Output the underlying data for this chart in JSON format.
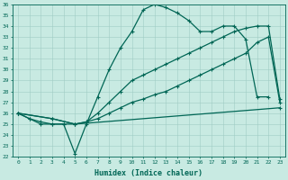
{
  "xlabel": "Humidex (Indice chaleur)",
  "xlim": [
    -0.5,
    23.5
  ],
  "ylim": [
    22,
    36
  ],
  "yticks": [
    22,
    23,
    24,
    25,
    26,
    27,
    28,
    29,
    30,
    31,
    32,
    33,
    34,
    35,
    36
  ],
  "xticks": [
    0,
    1,
    2,
    3,
    4,
    5,
    6,
    7,
    8,
    9,
    10,
    11,
    12,
    13,
    14,
    15,
    16,
    17,
    18,
    19,
    20,
    21,
    22,
    23
  ],
  "bg_color": "#c8eae2",
  "line_color": "#006655",
  "grid_color": "#a0ccc4",
  "line1_x": [
    0,
    1,
    2,
    3,
    4,
    5,
    6,
    7,
    8,
    9,
    10,
    11,
    12,
    13,
    14,
    15,
    16,
    17,
    18,
    19,
    20,
    21,
    22
  ],
  "line1_y": [
    26,
    25.5,
    25.2,
    25,
    25,
    22.3,
    25,
    27.5,
    30,
    32,
    33.5,
    35.5,
    36,
    35.7,
    35.2,
    34.5,
    33.5,
    33.5,
    34,
    34,
    32.8,
    27.5,
    27.5
  ],
  "line2_x": [
    0,
    1,
    2,
    3,
    4,
    5,
    6,
    7,
    8,
    9,
    10,
    11,
    12,
    13,
    14,
    15,
    16,
    17,
    18,
    19,
    20,
    21,
    22,
    23
  ],
  "line2_y": [
    26,
    25.5,
    25,
    25,
    25,
    25,
    25.2,
    25.5,
    26,
    26.5,
    27,
    27.3,
    27.7,
    28,
    28.5,
    29,
    29.5,
    30,
    30.5,
    31,
    31.5,
    32.5,
    33,
    27
  ],
  "line3_x": [
    0,
    3,
    5,
    6,
    7,
    8,
    9,
    10,
    11,
    12,
    13,
    14,
    15,
    16,
    17,
    18,
    19,
    20,
    21,
    22,
    23
  ],
  "line3_y": [
    26,
    25.5,
    25,
    25.2,
    26,
    27,
    28,
    29,
    29.5,
    30,
    30.5,
    31,
    31.5,
    32,
    32.5,
    33,
    33.5,
    33.8,
    34,
    34,
    27.3
  ],
  "line4_x": [
    0,
    3,
    5,
    23
  ],
  "line4_y": [
    26,
    25.5,
    25,
    26.5
  ]
}
